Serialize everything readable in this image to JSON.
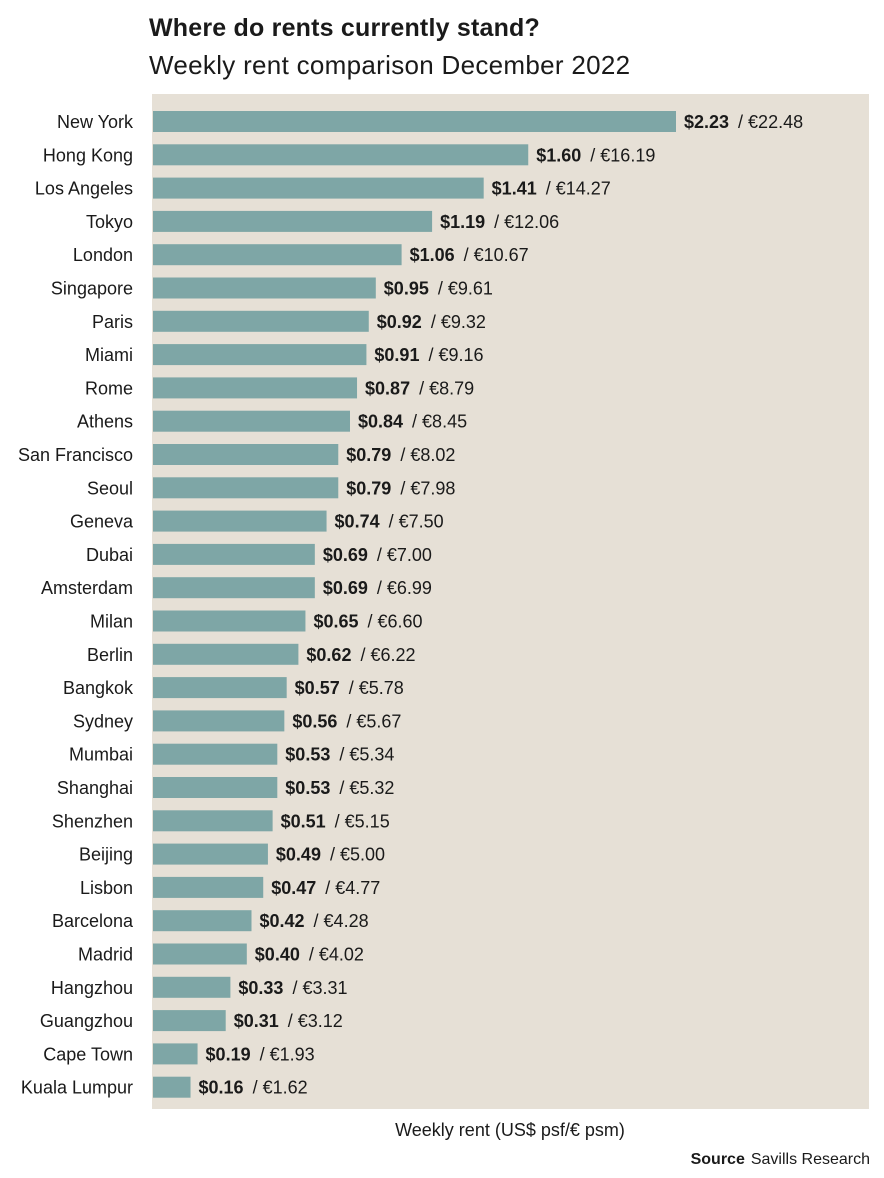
{
  "colors": {
    "panel": "#e6e0d6",
    "bar": "#7ea6a6",
    "text": "#1a1a1a"
  },
  "chart_data": {
    "type": "bar",
    "orientation": "horizontal",
    "title": "Where do rents currently stand?",
    "subtitle": "Weekly rent comparison December 2022",
    "xlabel": "Weekly rent (US$ psf/€ psm)",
    "source_label": "Source",
    "source_text": "Savills Research",
    "xlim": [
      0,
      2.23
    ],
    "grid": false,
    "categories": [
      "New York",
      "Hong Kong",
      "Los Angeles",
      "Tokyo",
      "London",
      "Singapore",
      "Paris",
      "Miami",
      "Rome",
      "Athens",
      "San Francisco",
      "Seoul",
      "Geneva",
      "Dubai",
      "Amsterdam",
      "Milan",
      "Berlin",
      "Bangkok",
      "Sydney",
      "Mumbai",
      "Shanghai",
      "Shenzhen",
      "Beijing",
      "Lisbon",
      "Barcelona",
      "Madrid",
      "Hangzhou",
      "Guangzhou",
      "Cape Town",
      "Kuala Lumpur"
    ],
    "series": [
      {
        "name": "US$ psf",
        "values": [
          2.23,
          1.6,
          1.41,
          1.19,
          1.06,
          0.95,
          0.92,
          0.91,
          0.87,
          0.84,
          0.79,
          0.79,
          0.74,
          0.69,
          0.69,
          0.65,
          0.62,
          0.57,
          0.56,
          0.53,
          0.53,
          0.51,
          0.49,
          0.47,
          0.42,
          0.4,
          0.33,
          0.31,
          0.19,
          0.16
        ]
      },
      {
        "name": "€ psm",
        "values": [
          22.48,
          16.19,
          14.27,
          12.06,
          10.67,
          9.61,
          9.32,
          9.16,
          8.79,
          8.45,
          8.02,
          7.98,
          7.5,
          7.0,
          6.99,
          6.6,
          6.22,
          5.78,
          5.67,
          5.34,
          5.32,
          5.15,
          5.0,
          4.77,
          4.28,
          4.02,
          3.31,
          3.12,
          1.93,
          1.62
        ]
      }
    ],
    "usd_labels": [
      "$2.23",
      "$1.60",
      "$1.41",
      "$1.19",
      "$1.06",
      "$0.95",
      "$0.92",
      "$0.91",
      "$0.87",
      "$0.84",
      "$0.79",
      "$0.79",
      "$0.74",
      "$0.69",
      "$0.69",
      "$0.65",
      "$0.62",
      "$0.57",
      "$0.56",
      "$0.53",
      "$0.53",
      "$0.51",
      "$0.49",
      "$0.47",
      "$0.42",
      "$0.40",
      "$0.33",
      "$0.31",
      "$0.19",
      "$0.16"
    ],
    "eur_labels": [
      "/ €22.48",
      "/ €16.19",
      "/ €14.27",
      "/ €12.06",
      "/ €10.67",
      "/ €9.61",
      "/ €9.32",
      "/ €9.16",
      "/ €8.79",
      "/ €8.45",
      "/ €8.02",
      "/ €7.98",
      "/ €7.50",
      "/ €7.00",
      "/ €6.99",
      "/ €6.60",
      "/ €6.22",
      "/ €5.78",
      "/ €5.67",
      "/ €5.34",
      "/ €5.32",
      "/ €5.15",
      "/ €5.00",
      "/ €4.77",
      "/ €4.28",
      "/ €4.02",
      "/ €3.31",
      "/ €3.12",
      "/ €1.93",
      "/ €1.62"
    ]
  }
}
